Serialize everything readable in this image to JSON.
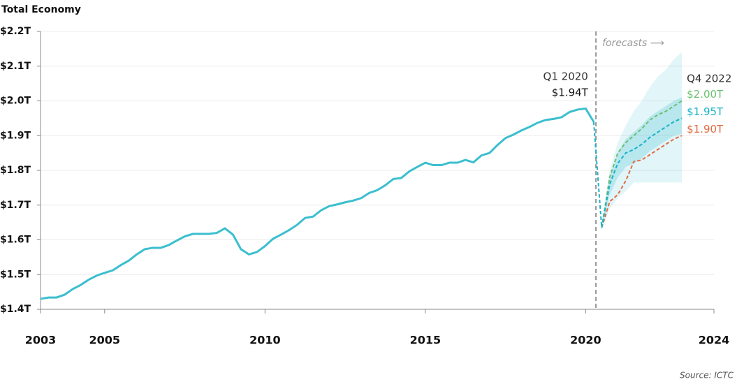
{
  "chart_data": {
    "type": "line",
    "title": "Total Economy",
    "source": "Source: ICTC",
    "xlim": [
      2003,
      2024
    ],
    "xticks": [
      2003,
      2005,
      2010,
      2015,
      2020,
      2024
    ],
    "ylim": [
      1.4,
      2.2
    ],
    "yticks": [
      {
        "value": 1.4,
        "label": "$1.4T"
      },
      {
        "value": 1.5,
        "label": "$1.5T"
      },
      {
        "value": 1.6,
        "label": "$1.6T"
      },
      {
        "value": 1.7,
        "label": "$1.7T"
      },
      {
        "value": 1.8,
        "label": "$1.8T"
      },
      {
        "value": 1.9,
        "label": "$1.9T"
      },
      {
        "value": 2.0,
        "label": "$2.0T"
      },
      {
        "value": 2.1,
        "label": "$2.1T"
      },
      {
        "value": 2.2,
        "label": "$2.2T"
      }
    ],
    "grid": true,
    "forecast_start": 2020.32,
    "forecast_label": "forecasts ⟶",
    "annotations": [
      {
        "x": 2020.25,
        "text": "Q1 2020"
      },
      {
        "x": 2023.0,
        "text": "Q4 2022"
      }
    ],
    "bands": [
      {
        "color": "#3bbfcf",
        "x": [
          2020.5,
          2020.75,
          2021.0,
          2021.25,
          2021.5,
          2021.75,
          2022.0,
          2022.25,
          2022.5,
          2022.75,
          2023.0
        ],
        "upper": [
          1.64,
          1.8,
          1.88,
          1.93,
          1.97,
          2.0,
          2.04,
          2.07,
          2.09,
          2.12,
          2.14
        ],
        "lower": [
          1.63,
          1.69,
          1.72,
          1.74,
          1.765,
          1.765,
          1.765,
          1.765,
          1.765,
          1.765,
          1.765
        ]
      },
      {
        "color": "#3bbfcf",
        "x": [
          2020.5,
          2020.75,
          2021.0,
          2021.25,
          2021.5,
          2021.75,
          2022.0,
          2022.25,
          2022.5,
          2022.75,
          2023.0
        ],
        "upper": [
          1.64,
          1.78,
          1.85,
          1.89,
          1.91,
          1.93,
          1.955,
          1.97,
          1.985,
          2.0,
          2.01
        ],
        "lower": [
          1.63,
          1.73,
          1.78,
          1.81,
          1.82,
          1.835,
          1.855,
          1.87,
          1.885,
          1.9,
          1.905
        ]
      }
    ],
    "series": [
      {
        "color": "#3bbfcf",
        "dashed": false,
        "end_label": "$1.94T",
        "x": [
          2003.0,
          2003.25,
          2003.5,
          2003.75,
          2004.0,
          2004.25,
          2004.5,
          2004.75,
          2005.0,
          2005.25,
          2005.5,
          2005.75,
          2006.0,
          2006.25,
          2006.5,
          2006.75,
          2007.0,
          2007.25,
          2007.5,
          2007.75,
          2008.0,
          2008.25,
          2008.5,
          2008.75,
          2009.0,
          2009.25,
          2009.5,
          2009.75,
          2010.0,
          2010.25,
          2010.5,
          2010.75,
          2011.0,
          2011.25,
          2011.5,
          2011.75,
          2012.0,
          2012.25,
          2012.5,
          2012.75,
          2013.0,
          2013.25,
          2013.5,
          2013.75,
          2014.0,
          2014.25,
          2014.5,
          2014.75,
          2015.0,
          2015.25,
          2015.5,
          2015.75,
          2016.0,
          2016.25,
          2016.5,
          2016.75,
          2017.0,
          2017.25,
          2017.5,
          2017.75,
          2018.0,
          2018.25,
          2018.5,
          2018.75,
          2019.0,
          2019.25,
          2019.5,
          2019.75,
          2020.0,
          2020.25
        ],
        "values": [
          1.43,
          1.434,
          1.434,
          1.442,
          1.458,
          1.47,
          1.485,
          1.497,
          1.505,
          1.512,
          1.527,
          1.54,
          1.558,
          1.573,
          1.577,
          1.577,
          1.585,
          1.598,
          1.61,
          1.617,
          1.617,
          1.617,
          1.62,
          1.633,
          1.615,
          1.573,
          1.558,
          1.565,
          1.582,
          1.603,
          1.615,
          1.628,
          1.643,
          1.663,
          1.667,
          1.685,
          1.697,
          1.702,
          1.708,
          1.713,
          1.72,
          1.735,
          1.743,
          1.757,
          1.775,
          1.778,
          1.797,
          1.81,
          1.822,
          1.815,
          1.815,
          1.822,
          1.822,
          1.83,
          1.823,
          1.843,
          1.85,
          1.873,
          1.893,
          1.903,
          1.915,
          1.925,
          1.937,
          1.945,
          1.948,
          1.953,
          1.968,
          1.975,
          1.978,
          1.94
        ]
      },
      {
        "color": "#6cc070",
        "dashed": true,
        "end_label": "$2.00T",
        "x": [
          2020.5,
          2020.75,
          2021.0,
          2021.25,
          2021.5,
          2021.75,
          2022.0,
          2022.25,
          2022.5,
          2022.75,
          2023.0
        ],
        "values": [
          1.635,
          1.78,
          1.85,
          1.88,
          1.9,
          1.92,
          1.945,
          1.96,
          1.97,
          1.985,
          2.0
        ]
      },
      {
        "color": "#e06c43",
        "dashed": true,
        "end_label": "$1.90T",
        "x": [
          2020.5,
          2020.75,
          2021.0,
          2021.25,
          2021.5,
          2021.75,
          2022.0,
          2022.25,
          2022.5,
          2022.75,
          2023.0
        ],
        "values": [
          1.635,
          1.71,
          1.73,
          1.77,
          1.825,
          1.83,
          1.845,
          1.86,
          1.875,
          1.89,
          1.9
        ]
      },
      {
        "color": "#1ab3c8",
        "dashed": true,
        "end_label": "$1.95T",
        "x": [
          2020.25,
          2020.5,
          2020.75,
          2021.0,
          2021.25,
          2021.5,
          2021.75,
          2022.0,
          2022.25,
          2022.5,
          2022.75,
          2023.0
        ],
        "values": [
          1.94,
          1.635,
          1.76,
          1.82,
          1.85,
          1.86,
          1.875,
          1.895,
          1.91,
          1.925,
          1.94,
          1.95
        ]
      }
    ]
  }
}
